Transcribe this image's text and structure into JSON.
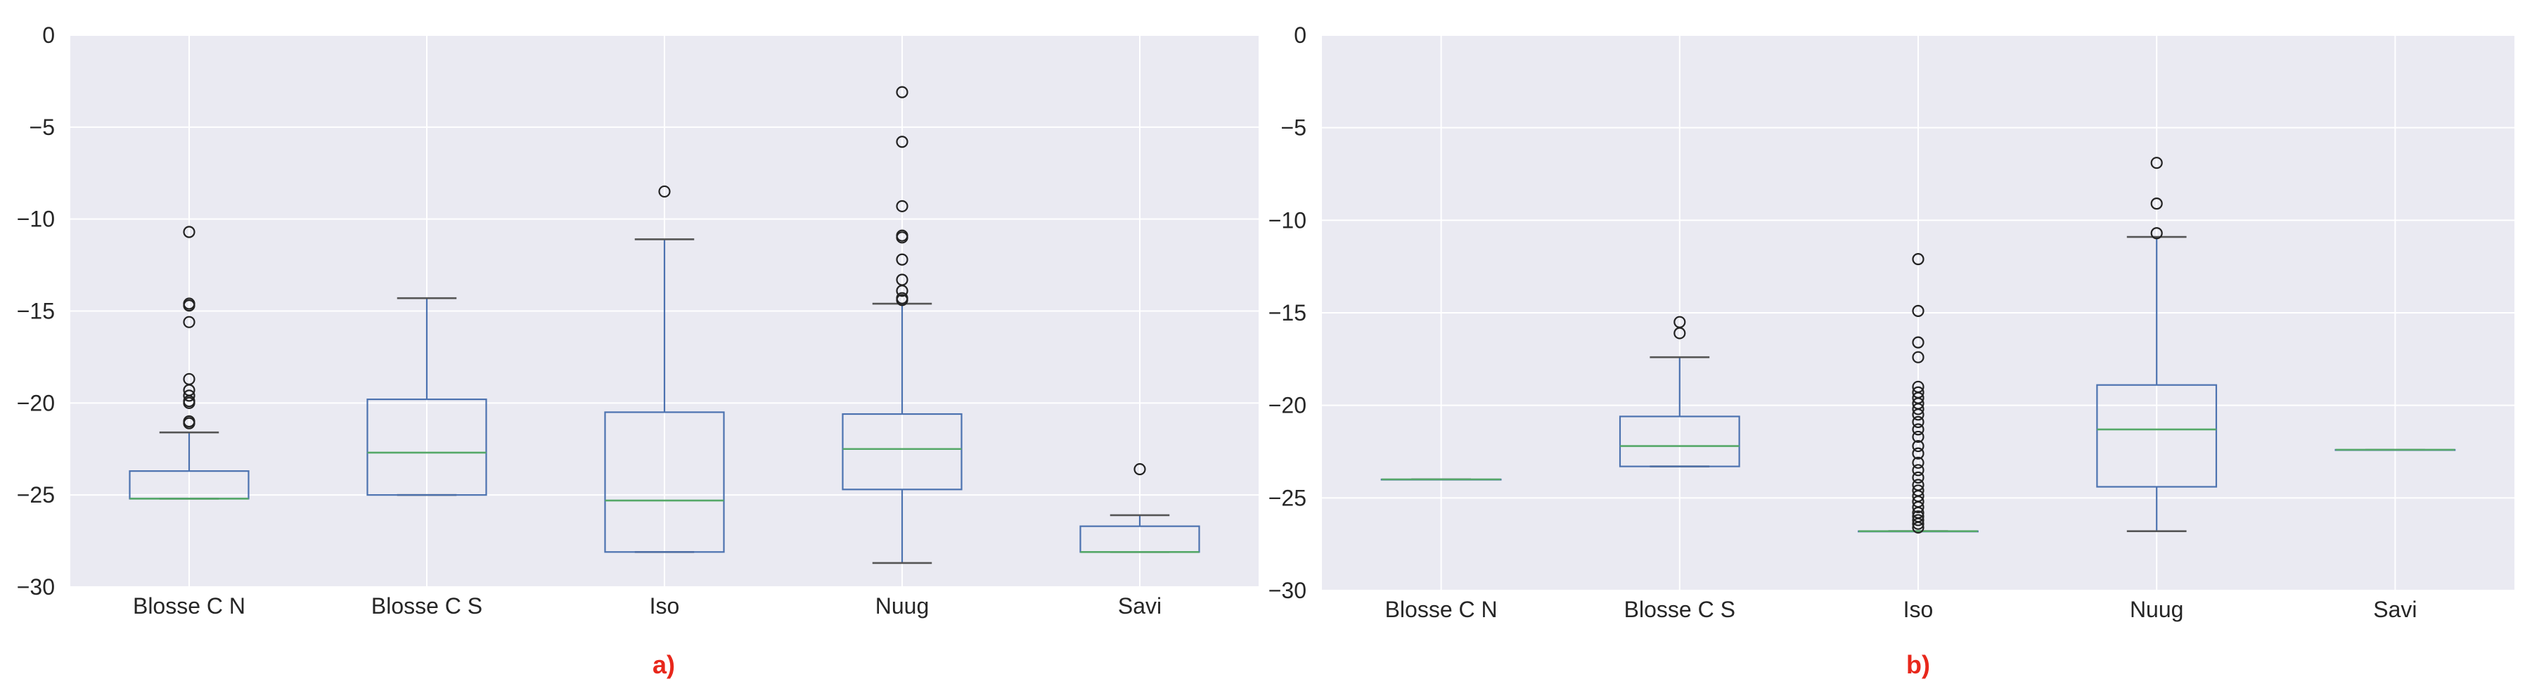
{
  "colors": {
    "axes_background": "#EAEAF2",
    "grid": "#FFFFFF",
    "box": "#4C72B0",
    "median": "#55A868",
    "caps": "#555555",
    "flier": "#222222",
    "panel_label": "#E8271B",
    "tick_text": "#262626"
  },
  "chart_data": [
    {
      "type": "box",
      "panel_label": "a)",
      "categories": [
        "Blosse C N",
        "Blosse C S",
        "Iso",
        "Nuug",
        "Savi"
      ],
      "ylim": [
        -30,
        0
      ],
      "yticks": [
        0,
        -5,
        -10,
        -15,
        -20,
        -25,
        -30
      ],
      "grid": true,
      "xlabel": "",
      "ylabel": "",
      "boxes": [
        {
          "name": "Blosse C N",
          "whisker_low": -25.2,
          "q1": -25.2,
          "median": -25.2,
          "q3": -23.7,
          "whisker_high": -21.6,
          "fliers": [
            -10.7,
            -14.6,
            -14.7,
            -15.6,
            -18.7,
            -19.3,
            -19.6,
            -19.9,
            -20.0,
            -21.0,
            -21.1
          ]
        },
        {
          "name": "Blosse C S",
          "whisker_low": -25.0,
          "q1": -25.0,
          "median": -22.7,
          "q3": -19.8,
          "whisker_high": -14.3,
          "fliers": []
        },
        {
          "name": "Iso",
          "whisker_low": -28.1,
          "q1": -28.1,
          "median": -25.3,
          "q3": -20.5,
          "whisker_high": -11.1,
          "fliers": [
            -8.5
          ]
        },
        {
          "name": "Nuug",
          "whisker_low": -28.7,
          "q1": -24.7,
          "median": -22.5,
          "q3": -20.6,
          "whisker_high": -14.6,
          "fliers": [
            -3.1,
            -5.8,
            -9.3,
            -10.9,
            -11.0,
            -12.2,
            -13.3,
            -13.9,
            -14.3,
            -14.4
          ]
        },
        {
          "name": "Savi",
          "whisker_low": -28.1,
          "q1": -28.1,
          "median": -28.1,
          "q3": -26.7,
          "whisker_high": -26.1,
          "fliers": [
            -23.6
          ]
        }
      ]
    },
    {
      "type": "box",
      "panel_label": "b)",
      "categories": [
        "Blosse C N",
        "Blosse C S",
        "Iso",
        "Nuug",
        "Savi"
      ],
      "ylim": [
        -30,
        0
      ],
      "yticks": [
        0,
        -5,
        -10,
        -15,
        -20,
        -25,
        -30
      ],
      "grid": true,
      "xlabel": "",
      "ylabel": "",
      "boxes": [
        {
          "name": "Blosse C N",
          "whisker_low": -24.0,
          "q1": -24.0,
          "median": -24.0,
          "q3": -24.0,
          "whisker_high": -24.0,
          "fliers": []
        },
        {
          "name": "Blosse C S",
          "whisker_low": -23.3,
          "q1": -23.3,
          "median": -22.2,
          "q3": -20.6,
          "whisker_high": -17.4,
          "fliers": [
            -15.5,
            -16.1
          ]
        },
        {
          "name": "Iso",
          "whisker_low": -26.8,
          "q1": -26.8,
          "median": -26.8,
          "q3": -26.8,
          "whisker_high": -26.8,
          "fliers": [
            -12.1,
            -14.9,
            -16.6,
            -17.4,
            -19.0,
            -19.3,
            -19.6,
            -19.9,
            -20.2,
            -20.5,
            -20.9,
            -21.3,
            -21.7,
            -22.2,
            -22.6,
            -23.1,
            -23.5,
            -23.9,
            -24.3,
            -24.6,
            -24.9,
            -25.2,
            -25.5,
            -25.8,
            -26.0,
            -26.2,
            -26.4,
            -26.6
          ]
        },
        {
          "name": "Nuug",
          "whisker_low": -26.8,
          "q1": -24.4,
          "median": -21.3,
          "q3": -18.9,
          "whisker_high": -10.9,
          "fliers": [
            -6.9,
            -9.1,
            -10.7
          ]
        },
        {
          "name": "Savi",
          "whisker_low": -22.4,
          "q1": -22.4,
          "median": -22.4,
          "q3": -22.4,
          "whisker_high": -22.4,
          "fliers": []
        }
      ]
    }
  ]
}
